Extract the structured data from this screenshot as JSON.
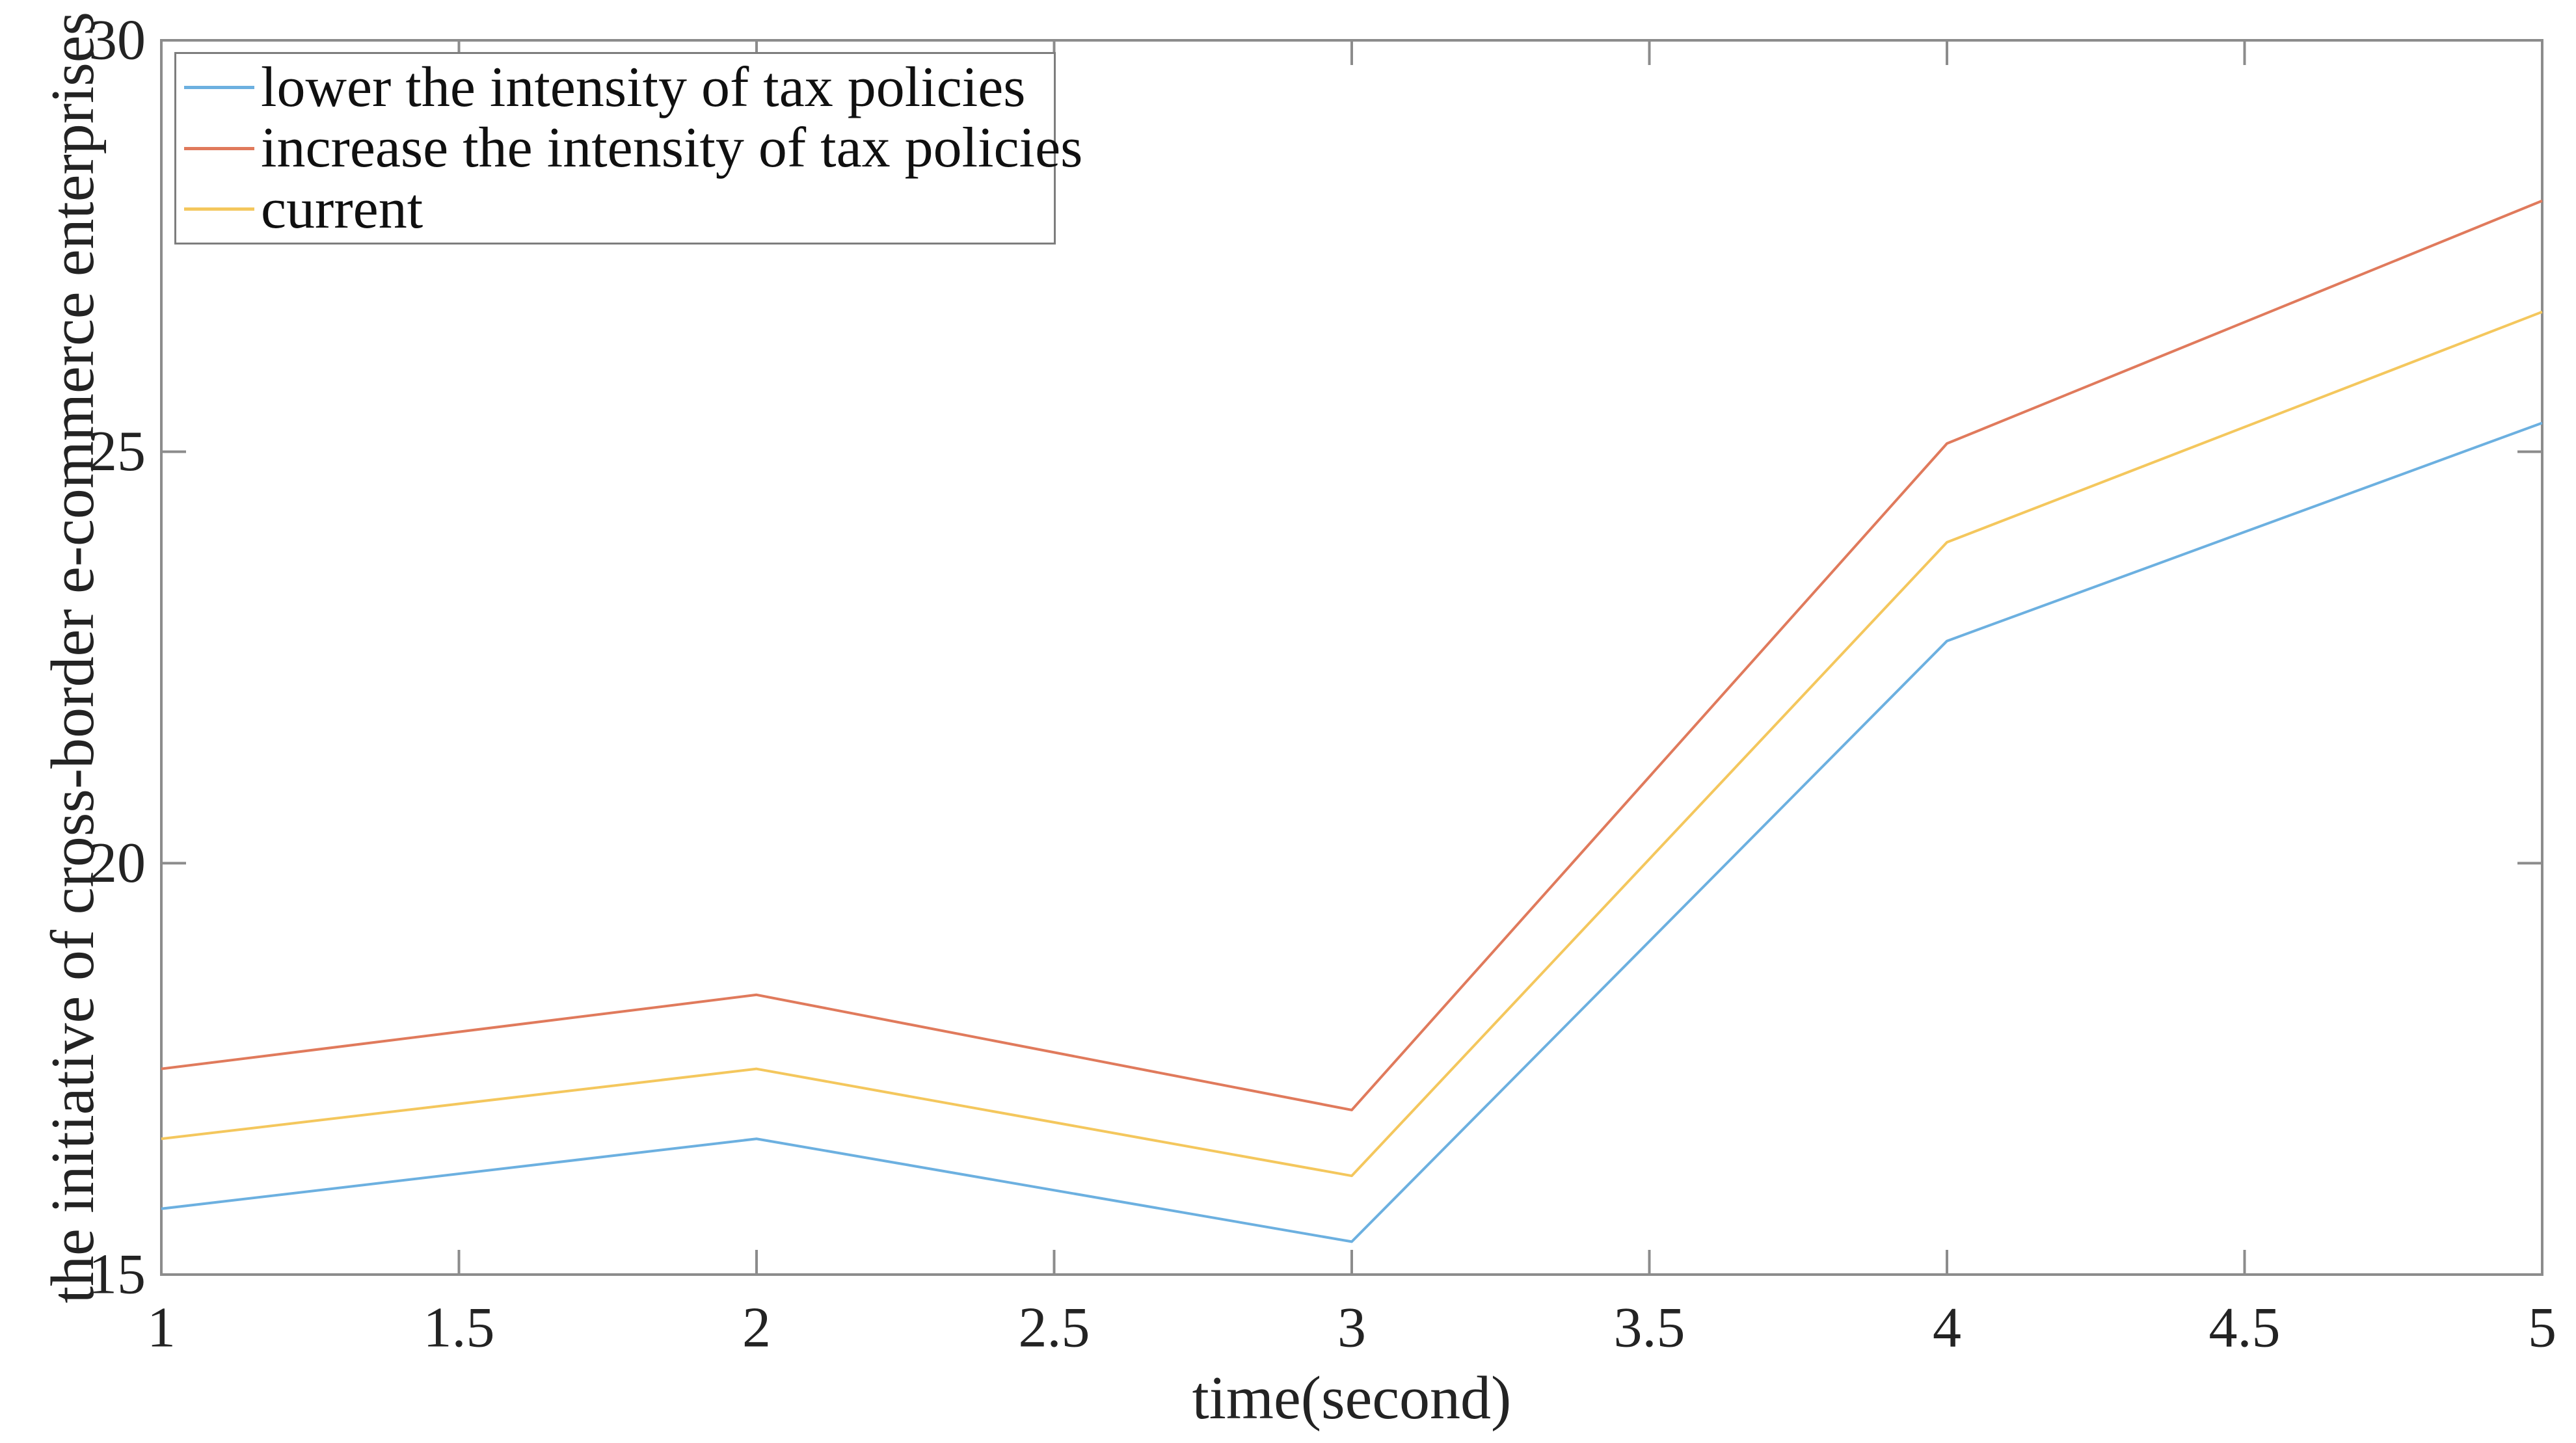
{
  "figure": {
    "background": "#ffffff",
    "axis_color": "#8c8c8c",
    "tick_text_color": "#232323"
  },
  "chart_data": {
    "type": "line",
    "title": "",
    "xlabel": "time(second)",
    "ylabel": "the initiative of cross-border e-commerce enterprises",
    "xlim": [
      1,
      5
    ],
    "ylim": [
      15,
      30
    ],
    "x_ticks": [
      1,
      1.5,
      2,
      2.5,
      3,
      3.5,
      4,
      4.5,
      5
    ],
    "x_tick_labels": [
      "1",
      "1.5",
      "2",
      "2.5",
      "3",
      "3.5",
      "4",
      "4.5",
      "5"
    ],
    "y_ticks": [
      15,
      20,
      25,
      30
    ],
    "y_tick_labels": [
      "15",
      "20",
      "25",
      "30"
    ],
    "grid": false,
    "legend_position": "top-left",
    "x": [
      1,
      2,
      3,
      4,
      5
    ],
    "series": [
      {
        "name": "lower the intensity of tax policies",
        "color": "#6CB0E0",
        "values": [
          15.8,
          16.65,
          15.4,
          22.7,
          25.35
        ]
      },
      {
        "name": "increase the intensity of tax policies",
        "color": "#E07A5C",
        "values": [
          17.5,
          18.4,
          17.0,
          25.1,
          28.05
        ]
      },
      {
        "name": "current",
        "color": "#F4C75D",
        "values": [
          16.65,
          17.5,
          16.2,
          23.9,
          26.7
        ]
      }
    ]
  }
}
